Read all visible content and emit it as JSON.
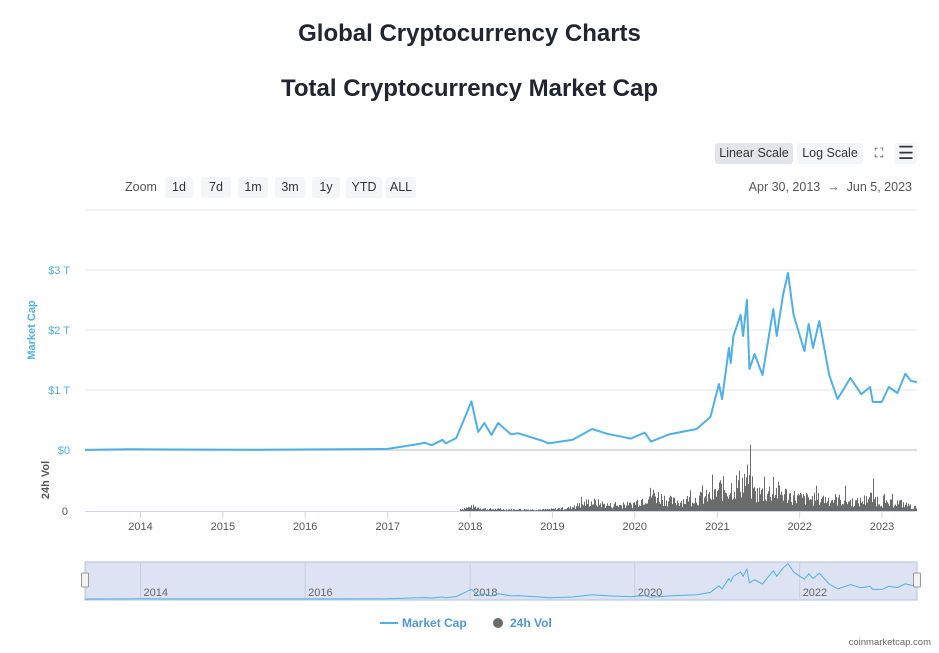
{
  "page_title": "Global Cryptocurrency Charts",
  "chart_title": "Total Cryptocurrency Market Cap",
  "toolbar": {
    "linear": "Linear Scale",
    "log": "Log Scale",
    "fullscreen_icon": "expand-icon",
    "menu_icon": "hamburger-menu-icon",
    "active_scale": "linear"
  },
  "zoom": {
    "label": "Zoom",
    "buttons": [
      "1d",
      "7d",
      "1m",
      "3m",
      "1y",
      "YTD",
      "ALL"
    ]
  },
  "range": {
    "from": "Apr 30, 2013",
    "arrow": "→",
    "to": "Jun 5, 2023"
  },
  "credit": "coinmarketcap.com",
  "chart_data": {
    "type": "line",
    "xrange": [
      "2013-04-30",
      "2023-06-05"
    ],
    "x_ticks": [
      "2014",
      "2015",
      "2016",
      "2017",
      "2018",
      "2019",
      "2020",
      "2021",
      "2022",
      "2023"
    ],
    "navigator_ticks": [
      "2014",
      "2016",
      "2018",
      "2020",
      "2022"
    ],
    "y_ticks": [
      "$0",
      "$1 T",
      "$2 T",
      "$3 T"
    ],
    "ylabel": "Market Cap",
    "ylim_trillions": [
      0,
      3
    ],
    "vol_label": "24h Vol",
    "vol_ticks": [
      "0"
    ],
    "grid": true,
    "legend_position": "bottom",
    "colors": {
      "market_cap": "#4fb0e8",
      "volume": "#6b6b6b",
      "axis_label": "#4fb0e8",
      "navigator": "#dde3f2"
    },
    "series": [
      {
        "name": "Market Cap",
        "unit": "USD trillions",
        "points": [
          [
            "2013-04-30",
            0.0015
          ],
          [
            "2013-12-01",
            0.013
          ],
          [
            "2014-06-01",
            0.008
          ],
          [
            "2015-06-01",
            0.005
          ],
          [
            "2016-06-01",
            0.011
          ],
          [
            "2017-01-01",
            0.018
          ],
          [
            "2017-05-01",
            0.09
          ],
          [
            "2017-06-15",
            0.12
          ],
          [
            "2017-07-15",
            0.08
          ],
          [
            "2017-09-01",
            0.17
          ],
          [
            "2017-09-15",
            0.11
          ],
          [
            "2017-11-01",
            0.2
          ],
          [
            "2017-12-15",
            0.6
          ],
          [
            "2018-01-07",
            0.81
          ],
          [
            "2018-02-06",
            0.3
          ],
          [
            "2018-03-05",
            0.45
          ],
          [
            "2018-04-06",
            0.25
          ],
          [
            "2018-05-05",
            0.45
          ],
          [
            "2018-07-01",
            0.26
          ],
          [
            "2018-08-01",
            0.28
          ],
          [
            "2018-11-20",
            0.15
          ],
          [
            "2018-12-15",
            0.11
          ],
          [
            "2019-04-01",
            0.17
          ],
          [
            "2019-06-26",
            0.35
          ],
          [
            "2019-09-01",
            0.27
          ],
          [
            "2019-12-15",
            0.19
          ],
          [
            "2020-02-14",
            0.29
          ],
          [
            "2020-03-13",
            0.14
          ],
          [
            "2020-06-01",
            0.26
          ],
          [
            "2020-10-01",
            0.35
          ],
          [
            "2020-12-01",
            0.55
          ],
          [
            "2021-01-08",
            1.1
          ],
          [
            "2021-01-22",
            0.85
          ],
          [
            "2021-02-21",
            1.7
          ],
          [
            "2021-03-01",
            1.45
          ],
          [
            "2021-03-13",
            1.9
          ],
          [
            "2021-04-14",
            2.25
          ],
          [
            "2021-04-25",
            1.9
          ],
          [
            "2021-05-12",
            2.5
          ],
          [
            "2021-05-23",
            1.35
          ],
          [
            "2021-06-15",
            1.6
          ],
          [
            "2021-07-20",
            1.25
          ],
          [
            "2021-09-06",
            2.35
          ],
          [
            "2021-09-21",
            1.9
          ],
          [
            "2021-10-20",
            2.6
          ],
          [
            "2021-11-10",
            2.95
          ],
          [
            "2021-12-05",
            2.25
          ],
          [
            "2022-01-22",
            1.65
          ],
          [
            "2022-02-10",
            2.1
          ],
          [
            "2022-03-01",
            1.7
          ],
          [
            "2022-03-29",
            2.15
          ],
          [
            "2022-05-12",
            1.25
          ],
          [
            "2022-06-18",
            0.85
          ],
          [
            "2022-08-14",
            1.2
          ],
          [
            "2022-10-01",
            0.93
          ],
          [
            "2022-11-09",
            1.05
          ],
          [
            "2022-11-21",
            0.8
          ],
          [
            "2022-12-31",
            0.8
          ],
          [
            "2023-01-31",
            1.05
          ],
          [
            "2023-03-10",
            0.95
          ],
          [
            "2023-04-14",
            1.27
          ],
          [
            "2023-05-10",
            1.15
          ],
          [
            "2023-06-05",
            1.13
          ]
        ]
      },
      {
        "name": "24h Vol",
        "unit": "USD billions",
        "type": "column",
        "points": [
          [
            "2017-12",
            40
          ],
          [
            "2018-01",
            55
          ],
          [
            "2018-03",
            25
          ],
          [
            "2018-06",
            20
          ],
          [
            "2018-09",
            18
          ],
          [
            "2018-12",
            20
          ],
          [
            "2019-03",
            40
          ],
          [
            "2019-05",
            90
          ],
          [
            "2019-06",
            120
          ],
          [
            "2019-09",
            70
          ],
          [
            "2019-12",
            80
          ],
          [
            "2020-01",
            130
          ],
          [
            "2020-03",
            220
          ],
          [
            "2020-06",
            120
          ],
          [
            "2020-09",
            150
          ],
          [
            "2020-12",
            200
          ],
          [
            "2021-01",
            300
          ],
          [
            "2021-02",
            280
          ],
          [
            "2021-05",
            420
          ],
          [
            "2021-06",
            220
          ],
          [
            "2021-09",
            260
          ],
          [
            "2021-11",
            200
          ],
          [
            "2022-01",
            160
          ],
          [
            "2022-06",
            150
          ],
          [
            "2022-09",
            110
          ],
          [
            "2022-11",
            180
          ],
          [
            "2023-01",
            90
          ],
          [
            "2023-03",
            110
          ],
          [
            "2023-05",
            50
          ],
          [
            "2023-06",
            40
          ]
        ]
      }
    ]
  }
}
